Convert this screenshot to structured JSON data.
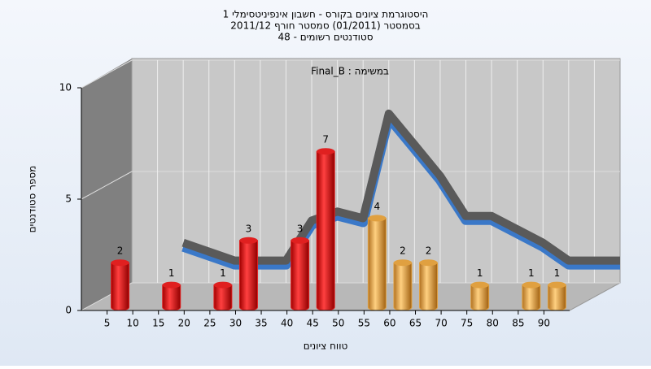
{
  "chart_data": {
    "type": "bar",
    "title": [
      "היסטוגרמת ציונים בקורס - חשבון אינפיניטסימלי 1",
      "בסמסטר (01/2011) סמסטר חורף 2011/12",
      "סטודנטים רשומים - 48"
    ],
    "annotation": "במשימה : Final_B",
    "xlabel": "טווח ציונים",
    "ylabel": "מספר סטודנטים",
    "x": [
      5,
      15,
      25,
      30,
      40,
      45,
      55,
      60,
      65,
      75,
      85,
      90
    ],
    "values": [
      2,
      1,
      1,
      3,
      3,
      7,
      4,
      2,
      2,
      1,
      1,
      1
    ],
    "colors": [
      "#e02020",
      "#e02020",
      "#e02020",
      "#e02020",
      "#e02020",
      "#e02020",
      "#e0a040",
      "#e0a040",
      "#e0a040",
      "#e0a040",
      "#e0a040",
      "#e0a040"
    ],
    "trend": {
      "x": [
        10,
        15,
        20,
        25,
        30,
        35,
        40,
        45,
        50,
        55,
        60,
        65,
        70,
        75,
        80,
        85,
        90,
        95
      ],
      "values": [
        1.8,
        1.4,
        1.0,
        1.0,
        1.0,
        2.8,
        3.2,
        2.9,
        7.6,
        6.2,
        4.8,
        3.0,
        3.0,
        2.4,
        1.8,
        1.0,
        1.0,
        1.0
      ]
    },
    "xlim": [
      0,
      95
    ],
    "ylim": [
      0,
      10
    ],
    "xticks": [
      5,
      10,
      15,
      20,
      25,
      30,
      35,
      40,
      45,
      50,
      55,
      60,
      65,
      70,
      75,
      80,
      85,
      90
    ],
    "yticks": [
      0,
      5,
      10
    ],
    "grid": true
  }
}
